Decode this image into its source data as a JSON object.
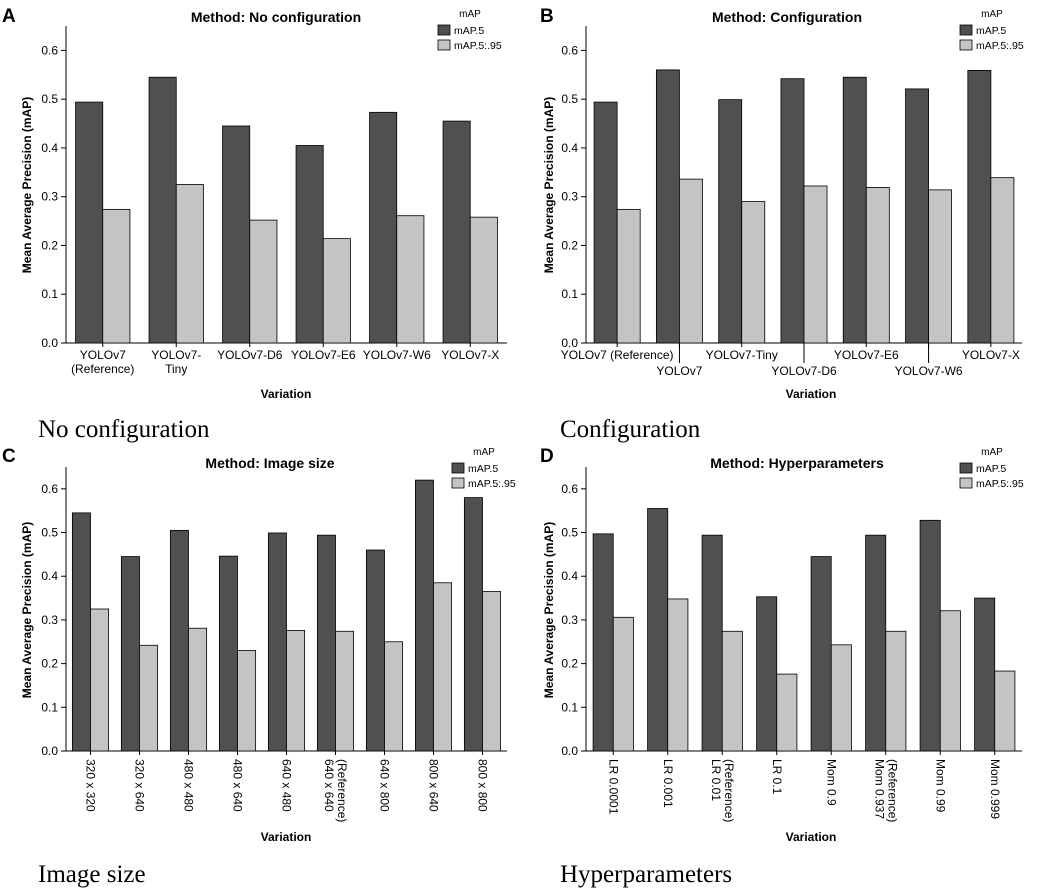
{
  "colors": {
    "dark": "#505050",
    "light": "#c4c4c4",
    "stroke": "#000000"
  },
  "y_axis_label": "Mean Average Precision (mAP)",
  "x_axis_label": "Variation",
  "legend": {
    "title": "mAP",
    "entries": [
      "mAP.5",
      "mAP.5:.95"
    ]
  },
  "captions": [
    "No configuration",
    "Configuration",
    "Image size",
    "Hyperparameters"
  ],
  "chart_data": [
    {
      "panel": "A",
      "type": "bar",
      "title": "Method: No configuration",
      "xlabel": "Variation",
      "ylabel": "Mean Average Precision (mAP)",
      "ylim": [
        0,
        0.65
      ],
      "yticks": [
        "0.0",
        "0.1",
        "0.2",
        "0.3",
        "0.4",
        "0.5",
        "0.6"
      ],
      "categories": [
        "YOLOv7 (Reference)",
        "YOLOv7-Tiny",
        "YOLOv7-D6",
        "YOLOv7-E6",
        "YOLOv7-W6",
        "YOLOv7-X"
      ],
      "category_lines": [
        [
          "YOLOv7",
          "(Reference)"
        ],
        [
          "YOLOv7-",
          "Tiny"
        ],
        [
          "YOLOv7-D6"
        ],
        [
          "YOLOv7-E6"
        ],
        [
          "YOLOv7-W6"
        ],
        [
          "YOLOv7-X"
        ]
      ],
      "label_style": "wrap",
      "series": [
        {
          "name": "mAP.5",
          "values": [
            0.494,
            0.545,
            0.445,
            0.405,
            0.473,
            0.455
          ]
        },
        {
          "name": "mAP.5:.95",
          "values": [
            0.274,
            0.325,
            0.252,
            0.214,
            0.261,
            0.258
          ]
        }
      ]
    },
    {
      "panel": "B",
      "type": "bar",
      "title": "Method: Configuration",
      "xlabel": "Variation",
      "ylabel": "Mean Average Precision (mAP)",
      "ylim": [
        0,
        0.65
      ],
      "yticks": [
        "0.0",
        "0.1",
        "0.2",
        "0.3",
        "0.4",
        "0.5",
        "0.6"
      ],
      "categories": [
        "YOLOv7 (Reference)",
        "YOLOv7",
        "YOLOv7-Tiny",
        "YOLOv7-D6",
        "YOLOv7-E6",
        "YOLOv7-W6",
        "YOLOv7-X"
      ],
      "category_lines": [
        [
          "YOLOv7 (Reference)"
        ],
        [
          "YOLOv7"
        ],
        [
          "YOLOv7-Tiny"
        ],
        [
          "YOLOv7-D6"
        ],
        [
          "YOLOv7-E6"
        ],
        [
          "YOLOv7-W6"
        ],
        [
          "YOLOv7-X"
        ]
      ],
      "label_style": "stagger",
      "series": [
        {
          "name": "mAP.5",
          "values": [
            0.494,
            0.56,
            0.499,
            0.542,
            0.545,
            0.521,
            0.559
          ]
        },
        {
          "name": "mAP.5:.95",
          "values": [
            0.274,
            0.336,
            0.29,
            0.322,
            0.319,
            0.314,
            0.339
          ]
        }
      ]
    },
    {
      "panel": "C",
      "type": "bar",
      "title": "Method: Image size",
      "xlabel": "Variation",
      "ylabel": "Mean Average Precision (mAP)",
      "ylim": [
        0,
        0.65
      ],
      "yticks": [
        "0.0",
        "0.1",
        "0.2",
        "0.3",
        "0.4",
        "0.5",
        "0.6"
      ],
      "categories": [
        "320 x 320",
        "320 x 640",
        "480 x 480",
        "480 x 640",
        "640 x 480",
        "640 x 640 (Reference)",
        "640 x 800",
        "800 x 640",
        "800 x 800"
      ],
      "category_lines": [
        [
          "320 x 320"
        ],
        [
          "320 x 640"
        ],
        [
          "480 x 480"
        ],
        [
          "480 x 640"
        ],
        [
          "640 x 480"
        ],
        [
          "640 x 640",
          "(Reference)"
        ],
        [
          "640 x 800"
        ],
        [
          "800 x 640"
        ],
        [
          "800 x 800"
        ]
      ],
      "label_style": "rotate",
      "series": [
        {
          "name": "mAP.5",
          "values": [
            0.545,
            0.445,
            0.505,
            0.446,
            0.499,
            0.494,
            0.46,
            0.62,
            0.58
          ]
        },
        {
          "name": "mAP.5:.95",
          "values": [
            0.325,
            0.242,
            0.281,
            0.23,
            0.276,
            0.274,
            0.25,
            0.385,
            0.365
          ]
        }
      ]
    },
    {
      "panel": "D",
      "type": "bar",
      "title": "Method: Hyperparameters",
      "xlabel": "Variation",
      "ylabel": "Mean Average Precision (mAP)",
      "ylim": [
        0,
        0.65
      ],
      "yticks": [
        "0.0",
        "0.1",
        "0.2",
        "0.3",
        "0.4",
        "0.5",
        "0.6"
      ],
      "categories": [
        "LR 0.0001",
        "LR 0.001",
        "LR 0.01 (Reference)",
        "LR 0.1",
        "Mom 0.9",
        "Mom 0.937 (Reference)",
        "Mom 0.99",
        "Mom 0.999"
      ],
      "category_lines": [
        [
          "LR 0.0001"
        ],
        [
          "LR 0.001"
        ],
        [
          "LR 0.01",
          "(Reference)"
        ],
        [
          "LR 0.1"
        ],
        [
          "Mom 0.9"
        ],
        [
          "Mom 0.937",
          "(Reference)"
        ],
        [
          "Mom 0.99"
        ],
        [
          "Mom 0.999"
        ]
      ],
      "label_style": "rotate",
      "series": [
        {
          "name": "mAP.5",
          "values": [
            0.497,
            0.555,
            0.494,
            0.353,
            0.445,
            0.494,
            0.528,
            0.35
          ]
        },
        {
          "name": "mAP.5:.95",
          "values": [
            0.306,
            0.348,
            0.274,
            0.176,
            0.243,
            0.274,
            0.321,
            0.183
          ]
        }
      ]
    }
  ]
}
